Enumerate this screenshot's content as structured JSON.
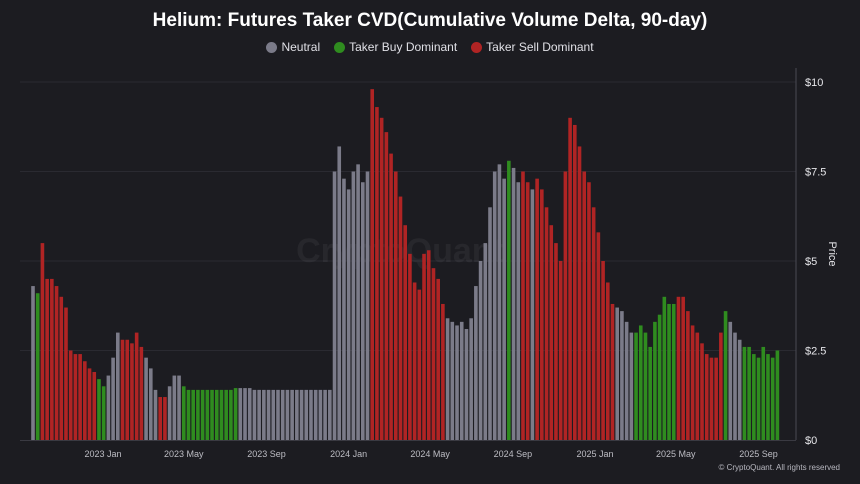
{
  "chart_data": {
    "type": "bar",
    "title": "Helium: Futures Taker CVD(Cumulative Volume Delta, 90-day)",
    "ylabel": "Price",
    "ylim": [
      0,
      10
    ],
    "y_ticks": [
      "$0",
      "$2.5",
      "$5",
      "$7.5",
      "$10"
    ],
    "y_tick_values": [
      0,
      2.5,
      5,
      7.5,
      10
    ],
    "x_ticks": [
      "2023 Jan",
      "2023 May",
      "2023 Sep",
      "2024 Jan",
      "2024 May",
      "2024 Sep",
      "2025 Jan",
      "2025 May",
      "2025 Sep"
    ],
    "x_tick_dates": [
      "2023-01-01",
      "2023-05-01",
      "2023-09-01",
      "2024-01-01",
      "2024-05-01",
      "2024-09-01",
      "2025-01-01",
      "2025-05-01",
      "2025-09-01"
    ],
    "grid": "horizontal",
    "legend_position": "top-center",
    "series": [
      {
        "name": "Neutral",
        "code": "N",
        "color": "#7b7b89"
      },
      {
        "name": "Taker Buy Dominant",
        "code": "B",
        "color": "#2f8c1f"
      },
      {
        "name": "Taker Sell Dominant",
        "code": "S",
        "color": "#b02424"
      }
    ],
    "points": [
      [
        "2022-09-19",
        4.3,
        "N"
      ],
      [
        "2022-09-26",
        4.1,
        "B"
      ],
      [
        "2022-10-03",
        5.5,
        "S"
      ],
      [
        "2022-10-10",
        4.5,
        "S"
      ],
      [
        "2022-10-17",
        4.5,
        "S"
      ],
      [
        "2022-10-24",
        4.3,
        "S"
      ],
      [
        "2022-10-31",
        4.0,
        "S"
      ],
      [
        "2022-11-07",
        3.7,
        "S"
      ],
      [
        "2022-11-14",
        2.5,
        "S"
      ],
      [
        "2022-11-21",
        2.4,
        "S"
      ],
      [
        "2022-11-28",
        2.4,
        "S"
      ],
      [
        "2022-12-05",
        2.2,
        "S"
      ],
      [
        "2022-12-12",
        2.0,
        "S"
      ],
      [
        "2022-12-19",
        1.9,
        "S"
      ],
      [
        "2022-12-26",
        1.7,
        "B"
      ],
      [
        "2023-01-02",
        1.5,
        "B"
      ],
      [
        "2023-01-09",
        1.8,
        "N"
      ],
      [
        "2023-01-16",
        2.3,
        "N"
      ],
      [
        "2023-01-23",
        3.0,
        "N"
      ],
      [
        "2023-01-30",
        2.8,
        "S"
      ],
      [
        "2023-02-06",
        2.8,
        "S"
      ],
      [
        "2023-02-13",
        2.7,
        "S"
      ],
      [
        "2023-02-20",
        3.0,
        "S"
      ],
      [
        "2023-02-27",
        2.6,
        "S"
      ],
      [
        "2023-03-06",
        2.3,
        "N"
      ],
      [
        "2023-03-13",
        2.0,
        "N"
      ],
      [
        "2023-03-20",
        1.4,
        "N"
      ],
      [
        "2023-03-27",
        1.2,
        "S"
      ],
      [
        "2023-04-03",
        1.2,
        "S"
      ],
      [
        "2023-04-10",
        1.5,
        "N"
      ],
      [
        "2023-04-17",
        1.8,
        "N"
      ],
      [
        "2023-04-24",
        1.8,
        "N"
      ],
      [
        "2023-05-01",
        1.5,
        "B"
      ],
      [
        "2023-05-08",
        1.4,
        "B"
      ],
      [
        "2023-05-15",
        1.4,
        "B"
      ],
      [
        "2023-05-22",
        1.4,
        "B"
      ],
      [
        "2023-05-29",
        1.4,
        "B"
      ],
      [
        "2023-06-05",
        1.4,
        "B"
      ],
      [
        "2023-06-12",
        1.4,
        "B"
      ],
      [
        "2023-06-19",
        1.4,
        "B"
      ],
      [
        "2023-06-26",
        1.4,
        "B"
      ],
      [
        "2023-07-03",
        1.4,
        "B"
      ],
      [
        "2023-07-10",
        1.4,
        "B"
      ],
      [
        "2023-07-17",
        1.45,
        "B"
      ],
      [
        "2023-07-24",
        1.45,
        "N"
      ],
      [
        "2023-07-31",
        1.45,
        "N"
      ],
      [
        "2023-08-07",
        1.45,
        "N"
      ],
      [
        "2023-08-14",
        1.4,
        "N"
      ],
      [
        "2023-08-21",
        1.4,
        "N"
      ],
      [
        "2023-08-28",
        1.4,
        "N"
      ],
      [
        "2023-09-04",
        1.4,
        "N"
      ],
      [
        "2023-09-11",
        1.4,
        "N"
      ],
      [
        "2023-09-18",
        1.4,
        "N"
      ],
      [
        "2023-09-25",
        1.4,
        "N"
      ],
      [
        "2023-10-02",
        1.4,
        "N"
      ],
      [
        "2023-10-09",
        1.4,
        "N"
      ],
      [
        "2023-10-16",
        1.4,
        "N"
      ],
      [
        "2023-10-23",
        1.4,
        "N"
      ],
      [
        "2023-10-30",
        1.4,
        "N"
      ],
      [
        "2023-11-06",
        1.4,
        "N"
      ],
      [
        "2023-11-13",
        1.4,
        "N"
      ],
      [
        "2023-11-20",
        1.4,
        "N"
      ],
      [
        "2023-11-27",
        1.4,
        "N"
      ],
      [
        "2023-12-04",
        1.4,
        "N"
      ],
      [
        "2023-12-11",
        7.5,
        "N"
      ],
      [
        "2023-12-18",
        8.2,
        "N"
      ],
      [
        "2023-12-25",
        7.3,
        "N"
      ],
      [
        "2024-01-01",
        7.0,
        "N"
      ],
      [
        "2024-01-08",
        7.5,
        "N"
      ],
      [
        "2024-01-15",
        7.7,
        "N"
      ],
      [
        "2024-01-22",
        7.2,
        "N"
      ],
      [
        "2024-01-29",
        7.5,
        "N"
      ],
      [
        "2024-02-05",
        9.8,
        "S"
      ],
      [
        "2024-02-12",
        9.3,
        "S"
      ],
      [
        "2024-02-19",
        9.0,
        "S"
      ],
      [
        "2024-02-26",
        8.6,
        "S"
      ],
      [
        "2024-03-04",
        8.0,
        "S"
      ],
      [
        "2024-03-11",
        7.5,
        "S"
      ],
      [
        "2024-03-18",
        6.8,
        "S"
      ],
      [
        "2024-03-25",
        6.0,
        "S"
      ],
      [
        "2024-04-01",
        5.2,
        "S"
      ],
      [
        "2024-04-08",
        4.4,
        "S"
      ],
      [
        "2024-04-15",
        4.2,
        "S"
      ],
      [
        "2024-04-22",
        5.2,
        "S"
      ],
      [
        "2024-04-29",
        5.3,
        "S"
      ],
      [
        "2024-05-06",
        4.8,
        "S"
      ],
      [
        "2024-05-13",
        4.5,
        "S"
      ],
      [
        "2024-05-20",
        3.8,
        "S"
      ],
      [
        "2024-05-27",
        3.4,
        "N"
      ],
      [
        "2024-06-03",
        3.3,
        "N"
      ],
      [
        "2024-06-10",
        3.2,
        "N"
      ],
      [
        "2024-06-17",
        3.3,
        "N"
      ],
      [
        "2024-06-24",
        3.1,
        "N"
      ],
      [
        "2024-07-01",
        3.4,
        "N"
      ],
      [
        "2024-07-08",
        4.3,
        "N"
      ],
      [
        "2024-07-15",
        5.0,
        "N"
      ],
      [
        "2024-07-22",
        5.5,
        "N"
      ],
      [
        "2024-07-29",
        6.5,
        "N"
      ],
      [
        "2024-08-05",
        7.5,
        "N"
      ],
      [
        "2024-08-12",
        7.7,
        "N"
      ],
      [
        "2024-08-19",
        7.3,
        "N"
      ],
      [
        "2024-08-26",
        7.8,
        "B"
      ],
      [
        "2024-09-02",
        7.6,
        "N"
      ],
      [
        "2024-09-09",
        7.2,
        "N"
      ],
      [
        "2024-09-16",
        7.5,
        "S"
      ],
      [
        "2024-09-23",
        7.2,
        "S"
      ],
      [
        "2024-09-30",
        7.0,
        "N"
      ],
      [
        "2024-10-07",
        7.3,
        "S"
      ],
      [
        "2024-10-14",
        7.0,
        "S"
      ],
      [
        "2024-10-21",
        6.5,
        "S"
      ],
      [
        "2024-10-28",
        6.0,
        "S"
      ],
      [
        "2024-11-04",
        5.5,
        "S"
      ],
      [
        "2024-11-11",
        5.0,
        "S"
      ],
      [
        "2024-11-18",
        7.5,
        "S"
      ],
      [
        "2024-11-25",
        9.0,
        "S"
      ],
      [
        "2024-12-02",
        8.8,
        "S"
      ],
      [
        "2024-12-09",
        8.2,
        "S"
      ],
      [
        "2024-12-16",
        7.5,
        "S"
      ],
      [
        "2024-12-23",
        7.2,
        "S"
      ],
      [
        "2024-12-30",
        6.5,
        "S"
      ],
      [
        "2025-01-06",
        5.8,
        "S"
      ],
      [
        "2025-01-13",
        5.0,
        "S"
      ],
      [
        "2025-01-20",
        4.4,
        "S"
      ],
      [
        "2025-01-27",
        3.8,
        "S"
      ],
      [
        "2025-02-03",
        3.7,
        "N"
      ],
      [
        "2025-02-10",
        3.6,
        "N"
      ],
      [
        "2025-02-17",
        3.3,
        "N"
      ],
      [
        "2025-02-24",
        3.0,
        "N"
      ],
      [
        "2025-03-03",
        3.0,
        "B"
      ],
      [
        "2025-03-10",
        3.2,
        "B"
      ],
      [
        "2025-03-17",
        3.0,
        "B"
      ],
      [
        "2025-03-24",
        2.6,
        "B"
      ],
      [
        "2025-03-31",
        3.3,
        "B"
      ],
      [
        "2025-04-07",
        3.5,
        "B"
      ],
      [
        "2025-04-14",
        4.0,
        "B"
      ],
      [
        "2025-04-21",
        3.8,
        "B"
      ],
      [
        "2025-04-28",
        3.8,
        "B"
      ],
      [
        "2025-05-05",
        4.0,
        "S"
      ],
      [
        "2025-05-12",
        4.0,
        "S"
      ],
      [
        "2025-05-19",
        3.6,
        "S"
      ],
      [
        "2025-05-26",
        3.2,
        "S"
      ],
      [
        "2025-06-02",
        3.0,
        "S"
      ],
      [
        "2025-06-09",
        2.7,
        "S"
      ],
      [
        "2025-06-16",
        2.4,
        "S"
      ],
      [
        "2025-06-23",
        2.3,
        "S"
      ],
      [
        "2025-06-30",
        2.3,
        "S"
      ],
      [
        "2025-07-07",
        3.0,
        "S"
      ],
      [
        "2025-07-14",
        3.6,
        "B"
      ],
      [
        "2025-07-21",
        3.3,
        "N"
      ],
      [
        "2025-07-28",
        3.0,
        "N"
      ],
      [
        "2025-08-04",
        2.8,
        "N"
      ],
      [
        "2025-08-11",
        2.6,
        "B"
      ],
      [
        "2025-08-18",
        2.6,
        "B"
      ],
      [
        "2025-08-25",
        2.4,
        "B"
      ],
      [
        "2025-09-01",
        2.3,
        "B"
      ],
      [
        "2025-09-08",
        2.6,
        "B"
      ],
      [
        "2025-09-15",
        2.4,
        "B"
      ],
      [
        "2025-09-22",
        2.3,
        "B"
      ],
      [
        "2025-09-29",
        2.5,
        "B"
      ]
    ]
  },
  "watermark": "CryptoQuant",
  "footer": "© CryptoQuant. All rights reserved"
}
